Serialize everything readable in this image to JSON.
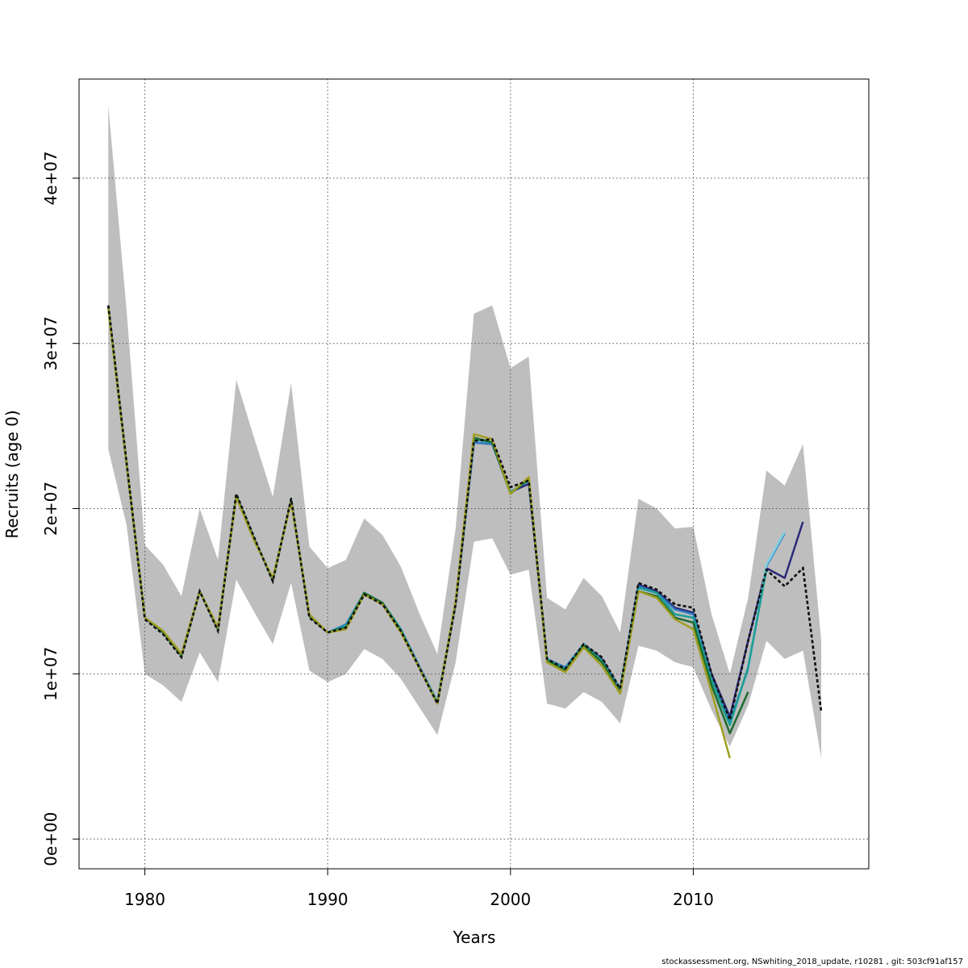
{
  "chart_data": {
    "type": "line",
    "title": "",
    "xlabel": "Years",
    "ylabel": "Recruits (age 0)",
    "xlim": [
      1976.4,
      2019.6
    ],
    "ylim": [
      -1800000,
      46000000
    ],
    "x_ticks": [
      1980,
      1990,
      2000,
      2010
    ],
    "x_tick_labels": [
      "1980",
      "1990",
      "2000",
      "2010"
    ],
    "y_ticks": [
      0,
      10000000,
      20000000,
      30000000,
      40000000
    ],
    "y_tick_labels": [
      "0e+00",
      "1e+07",
      "2e+07",
      "3e+07",
      "4e+07"
    ],
    "grid": true,
    "confidence_band": {
      "color": "#bebebe",
      "x": [
        1978,
        1979,
        1980,
        1981,
        1982,
        1983,
        1984,
        1985,
        1986,
        1987,
        1988,
        1989,
        1990,
        1991,
        1992,
        1993,
        1994,
        1995,
        1996,
        1997,
        1998,
        1999,
        2000,
        2001,
        2002,
        2003,
        2004,
        2005,
        2006,
        2007,
        2008,
        2009,
        2010,
        2011,
        2012,
        2013,
        2014,
        2015,
        2016,
        2017
      ],
      "upper": [
        44400000,
        32000000,
        17800000,
        16600000,
        14700000,
        20000000,
        16900000,
        27800000,
        24200000,
        20700000,
        27600000,
        17700000,
        16400000,
        16900000,
        19400000,
        18400000,
        16500000,
        13700000,
        11200000,
        18800000,
        31800000,
        32300000,
        28500000,
        29200000,
        14600000,
        13900000,
        15800000,
        14700000,
        12500000,
        20600000,
        20000000,
        18800000,
        18900000,
        13600000,
        10000000,
        14600000,
        22300000,
        21400000,
        23900000,
        12000000
      ],
      "lower": [
        23600000,
        19000000,
        10000000,
        9300000,
        8300000,
        11300000,
        9500000,
        15700000,
        13700000,
        11800000,
        15500000,
        10200000,
        9500000,
        10000000,
        11500000,
        10900000,
        9700000,
        8000000,
        6300000,
        10700000,
        18000000,
        18200000,
        16000000,
        16300000,
        8200000,
        7900000,
        8900000,
        8300000,
        7000000,
        11700000,
        11400000,
        10700000,
        10400000,
        7800000,
        5600000,
        8100000,
        12000000,
        10900000,
        11400000,
        4900000
      ]
    },
    "series": [
      {
        "color": "#111111",
        "dashed": true,
        "width": 2.5,
        "x": [
          1978,
          1979,
          1980,
          1981,
          1982,
          1983,
          1984,
          1985,
          1986,
          1987,
          1988,
          1989,
          1990,
          1991,
          1992,
          1993,
          1994,
          1995,
          1996,
          1997,
          1998,
          1999,
          2000,
          2001,
          2002,
          2003,
          2004,
          2005,
          2006,
          2007,
          2008,
          2009,
          2010,
          2011,
          2012,
          2013,
          2014,
          2015,
          2016,
          2017
        ],
        "values": [
          32300000,
          22800000,
          13300000,
          12400000,
          11000000,
          15000000,
          12600000,
          20900000,
          18200000,
          15600000,
          20600000,
          13400000,
          12500000,
          12800000,
          14800000,
          14200000,
          12600000,
          10400000,
          8200000,
          14200000,
          24100000,
          24200000,
          21300000,
          21700000,
          10900000,
          10300000,
          11800000,
          11000000,
          9100000,
          15500000,
          15100000,
          14200000,
          14000000,
          10000000,
          7200000,
          12000000,
          16300000,
          15300000,
          16400000,
          7700000
        ]
      },
      {
        "color": "#2a2a7a",
        "dashed": false,
        "width": 2.5,
        "x": [
          1978,
          1979,
          1980,
          1981,
          1982,
          1983,
          1984,
          1985,
          1986,
          1987,
          1988,
          1989,
          1990,
          1991,
          1992,
          1993,
          1994,
          1995,
          1996,
          1997,
          1998,
          1999,
          2000,
          2001,
          2002,
          2003,
          2004,
          2005,
          2006,
          2007,
          2008,
          2009,
          2010,
          2011,
          2012,
          2013,
          2014,
          2015,
          2016
        ],
        "values": [
          32200000,
          22700000,
          13400000,
          12500000,
          11100000,
          15000000,
          12700000,
          20800000,
          18100000,
          15700000,
          20500000,
          13500000,
          12500000,
          12900000,
          14900000,
          14300000,
          12700000,
          10400000,
          8300000,
          14200000,
          24000000,
          23900000,
          21000000,
          21500000,
          10900000,
          10300000,
          11800000,
          10900000,
          9100000,
          15400000,
          15000000,
          14000000,
          13700000,
          10000000,
          7400000,
          12000000,
          16400000,
          15800000,
          19200000
        ]
      },
      {
        "color": "#2f7fc4",
        "dashed": false,
        "width": 2.5,
        "x": [
          1978,
          1979,
          1980,
          1981,
          1982,
          1983,
          1984,
          1985,
          1986,
          1987,
          1988,
          1989,
          1990,
          1991,
          1992,
          1993,
          1994,
          1995,
          1996,
          1997,
          1998,
          1999,
          2000,
          2001,
          2002,
          2003,
          2004,
          2005,
          2006,
          2007,
          2008,
          2009,
          2010,
          2011,
          2012,
          2013,
          2014,
          2015
        ],
        "values": [
          32200000,
          22700000,
          13400000,
          12500000,
          11100000,
          15000000,
          12700000,
          20800000,
          18100000,
          15700000,
          20500000,
          13500000,
          12500000,
          13000000,
          14900000,
          14300000,
          12700000,
          10500000,
          8300000,
          14300000,
          24000000,
          23900000,
          21000000,
          21700000,
          10900000,
          10400000,
          11800000,
          10800000,
          9100000,
          15300000,
          14900000,
          13900000,
          13600000,
          9700000,
          7100000,
          10300000,
          16500000,
          18500000
        ]
      },
      {
        "color": "#7fcfe0",
        "dashed": false,
        "width": 2.5,
        "x": [
          2013,
          2014,
          2015
        ],
        "values": [
          10300000,
          16600000,
          18600000
        ]
      },
      {
        "color": "#1a9e94",
        "dashed": false,
        "width": 2.5,
        "x": [
          1978,
          1979,
          1980,
          1981,
          1982,
          1983,
          1984,
          1985,
          1986,
          1987,
          1988,
          1989,
          1990,
          1991,
          1992,
          1993,
          1994,
          1995,
          1996,
          1997,
          1998,
          1999,
          2000,
          2001,
          2002,
          2003,
          2004,
          2005,
          2006,
          2007,
          2008,
          2009,
          2010,
          2011,
          2012,
          2013,
          2014
        ],
        "values": [
          32200000,
          22700000,
          13400000,
          12500000,
          11100000,
          15000000,
          12700000,
          20800000,
          18100000,
          15700000,
          20500000,
          13500000,
          12500000,
          12900000,
          14900000,
          14300000,
          12700000,
          10400000,
          8300000,
          14300000,
          24200000,
          24000000,
          21000000,
          21700000,
          10900000,
          10300000,
          11800000,
          10800000,
          9000000,
          15200000,
          14900000,
          13600000,
          13400000,
          9600000,
          6900000,
          10400000,
          16300000
        ]
      },
      {
        "color": "#1e6b2f",
        "dashed": false,
        "width": 2.5,
        "x": [
          1978,
          1979,
          1980,
          1981,
          1982,
          1983,
          1984,
          1985,
          1986,
          1987,
          1988,
          1989,
          1990,
          1991,
          1992,
          1993,
          1994,
          1995,
          1996,
          1997,
          1998,
          1999,
          2000,
          2001,
          2002,
          2003,
          2004,
          2005,
          2006,
          2007,
          2008,
          2009,
          2010,
          2011,
          2012,
          2013
        ],
        "values": [
          32200000,
          22700000,
          13400000,
          12500000,
          11100000,
          15000000,
          12700000,
          20800000,
          18100000,
          15700000,
          20500000,
          13500000,
          12500000,
          12800000,
          14900000,
          14300000,
          12600000,
          10400000,
          8200000,
          14300000,
          24300000,
          24000000,
          20900000,
          21800000,
          10800000,
          10200000,
          11700000,
          10700000,
          8900000,
          15000000,
          14700000,
          13400000,
          13100000,
          9300000,
          6400000,
          8900000
        ]
      },
      {
        "color": "#9e9e20",
        "dashed": false,
        "width": 2.5,
        "x": [
          1978,
          1979,
          1980,
          1981,
          1982,
          1983,
          1984,
          1985,
          1986,
          1987,
          1988,
          1989,
          1990,
          1991,
          1992,
          1993,
          1994,
          1995,
          1996,
          1997,
          1998,
          1999,
          2000,
          2001,
          2002,
          2003,
          2004,
          2005,
          2006,
          2007,
          2008,
          2009,
          2010,
          2011,
          2012
        ],
        "values": [
          32100000,
          22700000,
          13400000,
          12600000,
          11200000,
          15000000,
          12800000,
          20700000,
          18000000,
          15800000,
          20400000,
          13600000,
          12500000,
          12700000,
          14800000,
          14200000,
          12500000,
          10400000,
          8200000,
          14400000,
          24500000,
          24200000,
          20900000,
          21900000,
          10700000,
          10100000,
          11600000,
          10500000,
          8800000,
          15000000,
          14600000,
          13300000,
          12700000,
          8900000,
          4900000
        ]
      }
    ]
  },
  "footer": "stockassessment.org, NSwhiting_2018_update, r10281 , git: 503cf91af157"
}
